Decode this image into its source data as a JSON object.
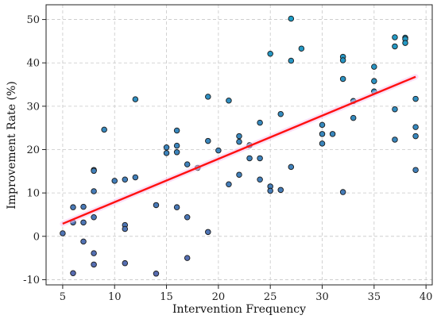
{
  "chart_data": {
    "type": "scatter",
    "title": "",
    "xlabel": "Intervention Frequency",
    "ylabel": "Improvement Rate (%)",
    "xlim": [
      3.4,
      40.6
    ],
    "ylim": [
      -11.2,
      53.4
    ],
    "xticks": [
      5,
      10,
      15,
      20,
      25,
      30,
      35,
      40
    ],
    "yticks": [
      -10,
      0,
      10,
      20,
      30,
      40,
      50
    ],
    "grid": true,
    "point_colors": {
      "low": "#5b6ab0",
      "high": "#1aa0c8",
      "edge": "#1a1a1a"
    },
    "points": [
      [
        5,
        0.7
      ],
      [
        6,
        6.7
      ],
      [
        6,
        3.2
      ],
      [
        6,
        -8.5
      ],
      [
        7,
        6.8
      ],
      [
        7,
        3.2
      ],
      [
        7,
        -1.2
      ],
      [
        8,
        15.3
      ],
      [
        8,
        15.1
      ],
      [
        8,
        10.4
      ],
      [
        8,
        4.4
      ],
      [
        8,
        -3.9
      ],
      [
        8,
        -6.5
      ],
      [
        9,
        24.6
      ],
      [
        10,
        12.8
      ],
      [
        11,
        13.1
      ],
      [
        11,
        2.6
      ],
      [
        11,
        1.7
      ],
      [
        11,
        -6.2
      ],
      [
        12,
        31.6
      ],
      [
        12,
        13.6
      ],
      [
        14,
        7.2
      ],
      [
        14,
        -8.6
      ],
      [
        15,
        20.5
      ],
      [
        15,
        19.2
      ],
      [
        16,
        24.4
      ],
      [
        16,
        20.9
      ],
      [
        16,
        19.4
      ],
      [
        16,
        6.7
      ],
      [
        17,
        16.6
      ],
      [
        17,
        4.4
      ],
      [
        17,
        -5.0
      ],
      [
        18,
        15.8
      ],
      [
        19,
        32.2
      ],
      [
        19,
        22.0
      ],
      [
        19,
        1.0
      ],
      [
        20,
        19.8
      ],
      [
        21,
        31.3
      ],
      [
        21,
        12.0
      ],
      [
        22,
        23.1
      ],
      [
        22,
        21.8
      ],
      [
        22,
        14.2
      ],
      [
        23,
        21.0
      ],
      [
        23,
        18.0
      ],
      [
        24,
        26.2
      ],
      [
        24,
        18.0
      ],
      [
        24,
        13.1
      ],
      [
        25,
        42.1
      ],
      [
        25,
        11.5
      ],
      [
        25,
        10.5
      ],
      [
        26,
        28.2
      ],
      [
        26,
        10.7
      ],
      [
        27,
        50.2
      ],
      [
        27,
        40.5
      ],
      [
        27,
        16.0
      ],
      [
        28,
        43.3
      ],
      [
        30,
        25.7
      ],
      [
        30,
        23.6
      ],
      [
        30,
        21.4
      ],
      [
        31,
        23.6
      ],
      [
        32,
        41.4
      ],
      [
        32,
        40.6
      ],
      [
        32,
        36.3
      ],
      [
        32,
        10.2
      ],
      [
        33,
        31.2
      ],
      [
        33,
        27.3
      ],
      [
        35,
        39.1
      ],
      [
        35,
        35.8
      ],
      [
        35,
        33.4
      ],
      [
        37,
        45.9
      ],
      [
        37,
        43.8
      ],
      [
        37,
        29.3
      ],
      [
        37,
        22.3
      ],
      [
        38,
        45.8
      ],
      [
        38,
        45.5
      ],
      [
        38,
        44.6
      ],
      [
        39,
        31.7
      ],
      [
        39,
        25.2
      ],
      [
        39,
        23.1
      ],
      [
        39,
        15.3
      ]
    ],
    "trend_line": {
      "x": [
        5,
        39
      ],
      "y": [
        2.9,
        36.8
      ],
      "color": "#ff1010",
      "underlay_color": "#f5c6f0"
    }
  }
}
